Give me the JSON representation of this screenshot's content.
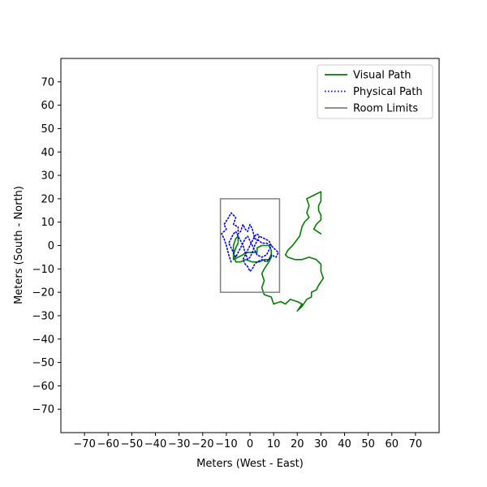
{
  "chart_data": {
    "type": "line",
    "title": "",
    "xlabel": "Meters (West - East)",
    "ylabel": "Meters (South - North)",
    "xlim": [
      -80,
      80
    ],
    "ylim": [
      -80,
      80
    ],
    "xticks": [
      -70,
      -60,
      -50,
      -40,
      -30,
      -20,
      -10,
      0,
      10,
      20,
      30,
      40,
      50,
      60,
      70
    ],
    "yticks": [
      -70,
      -60,
      -50,
      -40,
      -30,
      -20,
      -10,
      0,
      10,
      20,
      30,
      40,
      50,
      60,
      70
    ],
    "xtick_labels": [
      "−70",
      "−60",
      "−50",
      "−40",
      "−30",
      "−20",
      "−10",
      "0",
      "10",
      "20",
      "30",
      "40",
      "50",
      "60",
      "70"
    ],
    "ytick_labels": [
      "−70",
      "−60",
      "−50",
      "−40",
      "−30",
      "−20",
      "−10",
      "0",
      "10",
      "20",
      "30",
      "40",
      "50",
      "60",
      "70"
    ],
    "grid": false,
    "legend_position": "top-right",
    "series": [
      {
        "name": "Visual Path",
        "color": "#008000",
        "style": "solid",
        "points": [
          [
            30,
            5
          ],
          [
            27,
            7
          ],
          [
            28,
            9
          ],
          [
            30,
            11
          ],
          [
            30,
            13
          ],
          [
            29,
            15
          ],
          [
            29,
            17
          ],
          [
            30,
            19
          ],
          [
            30,
            23
          ],
          [
            26,
            21
          ],
          [
            24,
            20
          ],
          [
            25,
            17
          ],
          [
            24,
            14
          ],
          [
            25,
            12
          ],
          [
            23,
            10
          ],
          [
            22,
            8
          ],
          [
            21,
            4
          ],
          [
            18,
            0
          ],
          [
            16,
            -2
          ],
          [
            15,
            -4
          ],
          [
            16,
            -5
          ],
          [
            19,
            -6
          ],
          [
            22,
            -6
          ],
          [
            25,
            -5
          ],
          [
            28,
            -6
          ],
          [
            29,
            -7
          ],
          [
            30,
            -8
          ],
          [
            30,
            -11
          ],
          [
            31,
            -14
          ],
          [
            29,
            -17
          ],
          [
            28,
            -19
          ],
          [
            26,
            -20
          ],
          [
            26,
            -22
          ],
          [
            24,
            -23
          ],
          [
            22,
            -26
          ],
          [
            20,
            -28
          ],
          [
            22,
            -25
          ],
          [
            20,
            -24
          ],
          [
            17,
            -23
          ],
          [
            15,
            -25
          ],
          [
            13,
            -24
          ],
          [
            10,
            -25
          ],
          [
            9,
            -22
          ],
          [
            6,
            -21
          ],
          [
            5,
            -18
          ],
          [
            6,
            -15
          ],
          [
            5,
            -12
          ],
          [
            6,
            -10
          ],
          [
            8,
            -7
          ],
          [
            9,
            -5
          ],
          [
            9,
            -2
          ],
          [
            8,
            0
          ],
          [
            5,
            0
          ],
          [
            3,
            -1
          ],
          [
            3,
            -3
          ],
          [
            0,
            -3
          ],
          [
            -2,
            -3
          ],
          [
            -3,
            -4
          ],
          [
            -5,
            -5
          ],
          [
            -7,
            -6
          ],
          [
            -7,
            -3
          ],
          [
            -7,
            0
          ],
          [
            -6,
            3
          ],
          [
            -5,
            4
          ],
          [
            -5,
            1
          ],
          [
            -6,
            -1
          ],
          [
            -7,
            -4
          ],
          [
            -6,
            -7
          ],
          [
            -4,
            -7
          ],
          [
            -2,
            -6
          ],
          [
            1,
            -7
          ],
          [
            4,
            -7
          ],
          [
            6,
            -6
          ],
          [
            8,
            -6
          ],
          [
            9,
            -4
          ]
        ]
      },
      {
        "name": "Physical Path",
        "color": "#0000ff",
        "style": "dotted",
        "points": [
          [
            -8,
            -7
          ],
          [
            -9,
            -4
          ],
          [
            -10,
            0
          ],
          [
            -11,
            3
          ],
          [
            -12,
            5
          ],
          [
            -10,
            7
          ],
          [
            -11,
            9
          ],
          [
            -9,
            12
          ],
          [
            -8,
            14
          ],
          [
            -6,
            12
          ],
          [
            -7,
            9
          ],
          [
            -5,
            8
          ],
          [
            -5,
            5
          ],
          [
            -4,
            6
          ],
          [
            -3,
            9
          ],
          [
            -2,
            7
          ],
          [
            -1,
            6
          ],
          [
            0,
            9
          ],
          [
            1,
            7
          ],
          [
            2,
            3
          ],
          [
            4,
            2
          ],
          [
            5,
            1
          ],
          [
            7,
            1
          ],
          [
            9,
            0
          ],
          [
            10,
            -1
          ],
          [
            11,
            -2
          ],
          [
            12,
            -3
          ],
          [
            11,
            -5
          ],
          [
            9,
            -4
          ],
          [
            8,
            -6
          ],
          [
            7,
            -7
          ],
          [
            5,
            -6
          ],
          [
            3,
            -7
          ],
          [
            2,
            -8
          ],
          [
            1,
            -10
          ],
          [
            0,
            -11
          ],
          [
            -1,
            -9
          ],
          [
            -2,
            -8
          ],
          [
            -3,
            -6
          ],
          [
            -2,
            -4
          ],
          [
            -1,
            -2
          ],
          [
            0,
            0
          ],
          [
            1,
            2
          ],
          [
            2,
            4
          ],
          [
            3,
            5
          ],
          [
            4,
            4
          ],
          [
            3,
            2
          ],
          [
            2,
            0
          ],
          [
            1,
            -3
          ],
          [
            0,
            -5
          ],
          [
            -1,
            -6
          ],
          [
            -2,
            -3
          ],
          [
            -3,
            0
          ],
          [
            -4,
            2
          ],
          [
            -5,
            4
          ],
          [
            -6,
            6
          ],
          [
            -7,
            5
          ],
          [
            -8,
            3
          ],
          [
            -9,
            1
          ],
          [
            -8,
            -1
          ],
          [
            -7,
            -3
          ],
          [
            -6,
            -5
          ],
          [
            -5,
            -3
          ],
          [
            -4,
            -1
          ],
          [
            -3,
            1
          ],
          [
            -2,
            3
          ],
          [
            -1,
            4
          ],
          [
            0,
            2
          ],
          [
            1,
            0
          ],
          [
            2,
            -2
          ],
          [
            3,
            -4
          ],
          [
            5,
            -5
          ],
          [
            7,
            -4
          ],
          [
            8,
            -2
          ],
          [
            9,
            0
          ],
          [
            8,
            2
          ],
          [
            6,
            3
          ],
          [
            4,
            4
          ]
        ]
      },
      {
        "name": "Room Limits",
        "color": "#808080",
        "style": "solid",
        "points": [
          [
            -12.5,
            -20
          ],
          [
            12.5,
            -20
          ],
          [
            12.5,
            20
          ],
          [
            -12.5,
            20
          ],
          [
            -12.5,
            -20
          ]
        ]
      }
    ]
  }
}
